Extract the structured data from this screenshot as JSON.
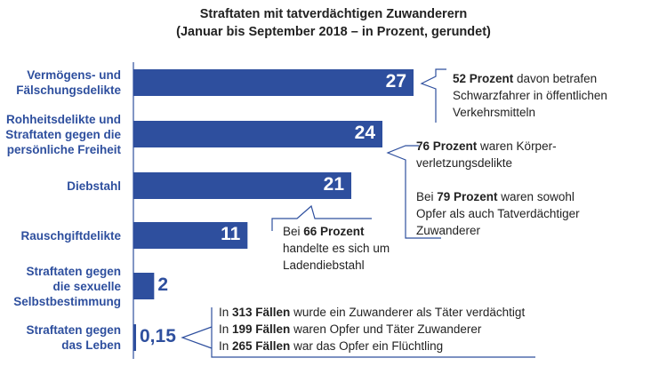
{
  "chart_data": {
    "type": "bar",
    "orientation": "horizontal",
    "title": "Straftaten mit tatverdächtigen Zuwanderern",
    "subtitle": "(Januar bis September 2018 – in Prozent, gerundet)",
    "categories": [
      [
        "Vermögens- und",
        "Fälschungsdelikte"
      ],
      [
        "Rohheitsdelikte und",
        "Straftaten gegen die",
        "persönliche Freiheit"
      ],
      [
        "Diebstahl"
      ],
      [
        "Rauschgiftdelikte"
      ],
      [
        "Straftaten gegen",
        "die sexuelle",
        "Selbstbestimmung"
      ],
      [
        "Straftaten gegen",
        "das Leben"
      ]
    ],
    "values": [
      27,
      24,
      21,
      11,
      2,
      0.15
    ],
    "value_labels": [
      "27",
      "24",
      "21",
      "11",
      "2",
      "0,15"
    ],
    "xlim": [
      0,
      30
    ],
    "grid": false,
    "legend": "none",
    "bar_color": "#2e4f9e"
  },
  "annotations": [
    {
      "lines": [
        [
          {
            "b": "52 Prozent"
          },
          {
            "t": " davon betrafen"
          }
        ],
        [
          {
            "t": "Schwarzfahrer in öffentlichen"
          }
        ],
        [
          {
            "t": "Verkehrsmitteln"
          }
        ]
      ]
    },
    {
      "lines": [
        [
          {
            "b": "76 Prozent"
          },
          {
            "t": " waren Körper-"
          }
        ],
        [
          {
            "t": "verletzungsdelikte"
          }
        ]
      ]
    },
    {
      "lines": [
        [
          {
            "t": "Bei "
          },
          {
            "b": "79 Prozent"
          },
          {
            "t": " waren sowohl"
          }
        ],
        [
          {
            "t": "Opfer als auch Tatverdächtiger"
          }
        ],
        [
          {
            "t": "Zuwanderer"
          }
        ]
      ]
    },
    {
      "lines": [
        [
          {
            "t": "Bei "
          },
          {
            "b": "66 Prozent"
          }
        ],
        [
          {
            "t": "handelte es sich um"
          }
        ],
        [
          {
            "t": "Ladendiebstahl"
          }
        ]
      ]
    },
    {
      "lines": [
        [
          {
            "t": "In "
          },
          {
            "b": "313 Fällen"
          },
          {
            "t": " wurde ein Zuwanderer als Täter verdächtigt"
          }
        ],
        [
          {
            "t": "In "
          },
          {
            "b": "199 Fällen"
          },
          {
            "t": " waren Opfer und Täter Zuwanderer"
          }
        ],
        [
          {
            "t": "In "
          },
          {
            "b": "265 Fällen"
          },
          {
            "t": " war das Opfer ein Flüchtling"
          }
        ]
      ]
    }
  ]
}
